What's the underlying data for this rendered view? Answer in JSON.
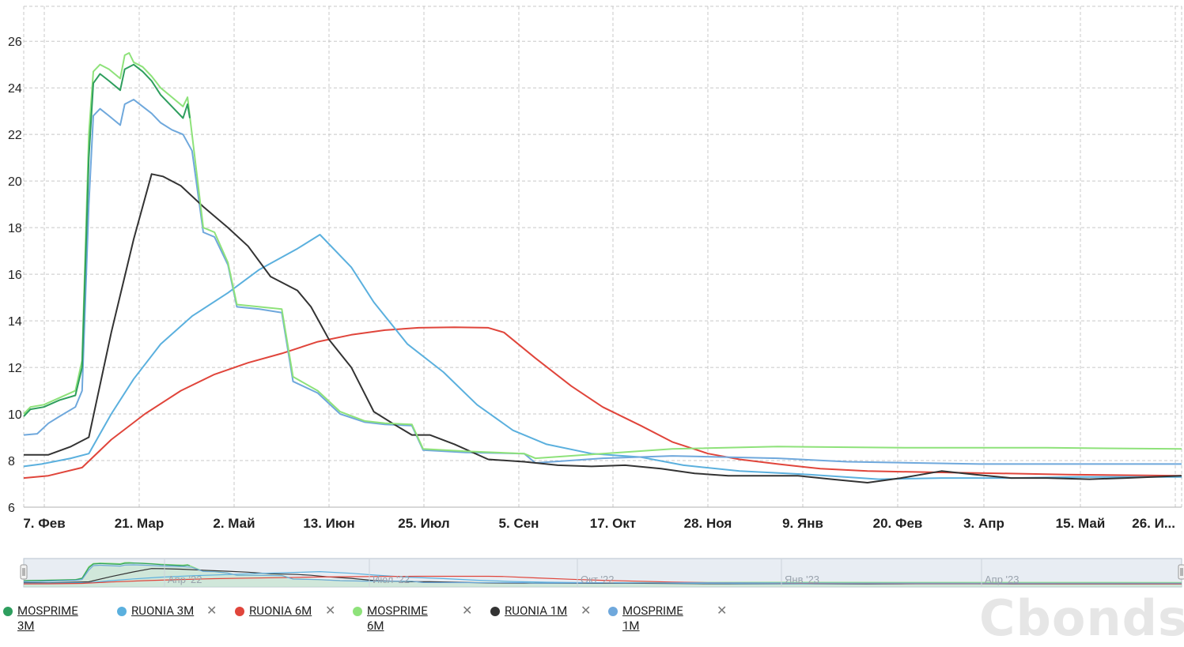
{
  "chart_data": {
    "type": "line",
    "y_ticks": [
      "6",
      "8",
      "10",
      "12",
      "14",
      "16",
      "18",
      "20",
      "22",
      "24",
      "26"
    ],
    "ylim": [
      6,
      27.5
    ],
    "grid": true,
    "x_axis_labels": [
      "7. Фев",
      "21. Мар",
      "2. Май",
      "13. Июн",
      "25. Июл",
      "5. Сен",
      "17. Окт",
      "28. Ноя",
      "9. Янв",
      "20. Фев",
      "3. Апр",
      "15. Май",
      "26. И..."
    ],
    "x_range": [
      "2022-01-30",
      "2023-06-30"
    ],
    "navigator_labels": [
      "Апр '22",
      "Июл '22",
      "Окт '22",
      "Янв '23",
      "Апр '23"
    ],
    "series": [
      {
        "name": "MOSPRIME 3M",
        "color": "#2e9e5e",
        "points": [
          [
            "2022-01-30",
            9.9
          ],
          [
            "2022-02-02",
            10.2
          ],
          [
            "2022-02-08",
            10.3
          ],
          [
            "2022-02-15",
            10.6
          ],
          [
            "2022-02-22",
            10.8
          ],
          [
            "2022-02-25",
            12.0
          ],
          [
            "2022-02-28",
            21.0
          ],
          [
            "2022-03-02",
            24.2
          ],
          [
            "2022-03-05",
            24.6
          ],
          [
            "2022-03-09",
            24.3
          ],
          [
            "2022-03-14",
            23.9
          ],
          [
            "2022-03-16",
            24.8
          ],
          [
            "2022-03-20",
            25.0
          ],
          [
            "2022-03-24",
            24.7
          ],
          [
            "2022-03-28",
            24.3
          ],
          [
            "2022-04-01",
            23.7
          ],
          [
            "2022-04-06",
            23.2
          ],
          [
            "2022-04-11",
            22.7
          ],
          [
            "2022-04-13",
            23.3
          ],
          [
            "2022-04-14",
            22.7
          ]
        ]
      },
      {
        "name": "RUONIA 3M",
        "color": "#5bb0de",
        "points": [
          [
            "2022-01-30",
            7.75
          ],
          [
            "2022-02-07",
            7.85
          ],
          [
            "2022-02-20",
            8.1
          ],
          [
            "2022-02-28",
            8.3
          ],
          [
            "2022-03-10",
            10.0
          ],
          [
            "2022-03-20",
            11.5
          ],
          [
            "2022-04-01",
            13.0
          ],
          [
            "2022-04-15",
            14.2
          ],
          [
            "2022-05-01",
            15.2
          ],
          [
            "2022-05-15",
            16.2
          ],
          [
            "2022-06-01",
            17.1
          ],
          [
            "2022-06-11",
            17.7
          ],
          [
            "2022-06-25",
            16.3
          ],
          [
            "2022-07-05",
            14.8
          ],
          [
            "2022-07-20",
            13.0
          ],
          [
            "2022-08-05",
            11.8
          ],
          [
            "2022-08-20",
            10.4
          ],
          [
            "2022-09-05",
            9.3
          ],
          [
            "2022-09-20",
            8.7
          ],
          [
            "2022-10-10",
            8.3
          ],
          [
            "2022-11-01",
            8.15
          ],
          [
            "2022-11-20",
            7.8
          ],
          [
            "2022-12-15",
            7.55
          ],
          [
            "2023-01-15",
            7.4
          ],
          [
            "2023-02-15",
            7.2
          ],
          [
            "2023-03-15",
            7.25
          ],
          [
            "2023-04-15",
            7.25
          ],
          [
            "2023-05-15",
            7.3
          ],
          [
            "2023-06-30",
            7.3
          ]
        ]
      },
      {
        "name": "RUONIA 6M",
        "color": "#e0453b",
        "points": [
          [
            "2022-01-30",
            7.25
          ],
          [
            "2022-02-10",
            7.35
          ],
          [
            "2022-02-25",
            7.7
          ],
          [
            "2022-03-10",
            8.9
          ],
          [
            "2022-03-25",
            10.0
          ],
          [
            "2022-04-10",
            11.0
          ],
          [
            "2022-04-25",
            11.7
          ],
          [
            "2022-05-10",
            12.2
          ],
          [
            "2022-05-25",
            12.6
          ],
          [
            "2022-06-10",
            13.1
          ],
          [
            "2022-06-25",
            13.4
          ],
          [
            "2022-07-10",
            13.6
          ],
          [
            "2022-07-25",
            13.7
          ],
          [
            "2022-08-10",
            13.72
          ],
          [
            "2022-08-25",
            13.7
          ],
          [
            "2022-09-01",
            13.5
          ],
          [
            "2022-09-15",
            12.4
          ],
          [
            "2022-10-01",
            11.2
          ],
          [
            "2022-10-15",
            10.3
          ],
          [
            "2022-11-01",
            9.5
          ],
          [
            "2022-11-15",
            8.8
          ],
          [
            "2022-12-01",
            8.3
          ],
          [
            "2022-12-15",
            8.05
          ],
          [
            "2023-01-01",
            7.85
          ],
          [
            "2023-01-20",
            7.65
          ],
          [
            "2023-02-10",
            7.55
          ],
          [
            "2023-03-10",
            7.5
          ],
          [
            "2023-04-10",
            7.45
          ],
          [
            "2023-05-10",
            7.4
          ],
          [
            "2023-06-30",
            7.35
          ]
        ]
      },
      {
        "name": "MOSPRIME 6M",
        "color": "#8ee27a",
        "points": [
          [
            "2022-01-30",
            10.0
          ],
          [
            "2022-02-02",
            10.3
          ],
          [
            "2022-02-08",
            10.4
          ],
          [
            "2022-02-15",
            10.7
          ],
          [
            "2022-02-22",
            11.0
          ],
          [
            "2022-02-25",
            12.3
          ],
          [
            "2022-02-28",
            22.0
          ],
          [
            "2022-03-02",
            24.7
          ],
          [
            "2022-03-05",
            25.0
          ],
          [
            "2022-03-09",
            24.8
          ],
          [
            "2022-03-14",
            24.4
          ],
          [
            "2022-03-16",
            25.4
          ],
          [
            "2022-03-18",
            25.5
          ],
          [
            "2022-03-20",
            25.1
          ],
          [
            "2022-03-24",
            24.9
          ],
          [
            "2022-03-28",
            24.5
          ],
          [
            "2022-04-01",
            24.0
          ],
          [
            "2022-04-06",
            23.6
          ],
          [
            "2022-04-11",
            23.2
          ],
          [
            "2022-04-13",
            23.6
          ],
          [
            "2022-04-15",
            22.0
          ],
          [
            "2022-04-20",
            18.0
          ],
          [
            "2022-04-25",
            17.8
          ],
          [
            "2022-05-01",
            16.5
          ],
          [
            "2022-05-05",
            14.7
          ],
          [
            "2022-05-15",
            14.6
          ],
          [
            "2022-05-25",
            14.5
          ],
          [
            "2022-05-30",
            11.6
          ],
          [
            "2022-06-10",
            11.0
          ],
          [
            "2022-06-20",
            10.1
          ],
          [
            "2022-07-01",
            9.7
          ],
          [
            "2022-07-10",
            9.6
          ],
          [
            "2022-07-22",
            9.55
          ],
          [
            "2022-07-27",
            8.5
          ],
          [
            "2022-08-15",
            8.4
          ],
          [
            "2022-09-10",
            8.3
          ],
          [
            "2022-09-15",
            8.1
          ],
          [
            "2022-10-15",
            8.3
          ],
          [
            "2022-11-15",
            8.5
          ],
          [
            "2023-01-01",
            8.6
          ],
          [
            "2023-03-01",
            8.55
          ],
          [
            "2023-05-01",
            8.55
          ],
          [
            "2023-06-30",
            8.5
          ]
        ]
      },
      {
        "name": "RUONIA 1M",
        "color": "#333333",
        "points": [
          [
            "2022-01-30",
            8.25
          ],
          [
            "2022-02-10",
            8.25
          ],
          [
            "2022-02-20",
            8.6
          ],
          [
            "2022-02-28",
            9.0
          ],
          [
            "2022-03-10",
            13.5
          ],
          [
            "2022-03-20",
            17.5
          ],
          [
            "2022-03-28",
            20.3
          ],
          [
            "2022-04-02",
            20.2
          ],
          [
            "2022-04-10",
            19.8
          ],
          [
            "2022-04-20",
            18.9
          ],
          [
            "2022-05-01",
            18.0
          ],
          [
            "2022-05-10",
            17.2
          ],
          [
            "2022-05-20",
            15.9
          ],
          [
            "2022-06-01",
            15.3
          ],
          [
            "2022-06-07",
            14.6
          ],
          [
            "2022-06-15",
            13.2
          ],
          [
            "2022-06-25",
            12.0
          ],
          [
            "2022-07-05",
            10.1
          ],
          [
            "2022-07-15",
            9.5
          ],
          [
            "2022-07-22",
            9.1
          ],
          [
            "2022-07-30",
            9.1
          ],
          [
            "2022-08-10",
            8.7
          ],
          [
            "2022-08-25",
            8.05
          ],
          [
            "2022-09-10",
            7.95
          ],
          [
            "2022-09-25",
            7.8
          ],
          [
            "2022-10-10",
            7.75
          ],
          [
            "2022-10-25",
            7.8
          ],
          [
            "2022-11-10",
            7.65
          ],
          [
            "2022-11-25",
            7.45
          ],
          [
            "2022-12-10",
            7.35
          ],
          [
            "2022-12-25",
            7.35
          ],
          [
            "2023-01-10",
            7.35
          ],
          [
            "2023-01-25",
            7.2
          ],
          [
            "2023-02-10",
            7.05
          ],
          [
            "2023-02-25",
            7.25
          ],
          [
            "2023-03-15",
            7.55
          ],
          [
            "2023-03-30",
            7.4
          ],
          [
            "2023-04-15",
            7.25
          ],
          [
            "2023-05-01",
            7.25
          ],
          [
            "2023-05-20",
            7.2
          ],
          [
            "2023-06-05",
            7.25
          ],
          [
            "2023-06-30",
            7.35
          ]
        ]
      },
      {
        "name": "MOSPRIME 1M",
        "color": "#6fa8dc",
        "points": [
          [
            "2022-01-30",
            9.1
          ],
          [
            "2022-02-05",
            9.15
          ],
          [
            "2022-02-10",
            9.6
          ],
          [
            "2022-02-15",
            9.9
          ],
          [
            "2022-02-22",
            10.3
          ],
          [
            "2022-02-25",
            11.0
          ],
          [
            "2022-02-28",
            19.0
          ],
          [
            "2022-03-02",
            22.8
          ],
          [
            "2022-03-05",
            23.1
          ],
          [
            "2022-03-09",
            22.8
          ],
          [
            "2022-03-14",
            22.4
          ],
          [
            "2022-03-16",
            23.3
          ],
          [
            "2022-03-20",
            23.5
          ],
          [
            "2022-03-24",
            23.2
          ],
          [
            "2022-03-28",
            22.9
          ],
          [
            "2022-04-01",
            22.5
          ],
          [
            "2022-04-06",
            22.2
          ],
          [
            "2022-04-11",
            22.0
          ],
          [
            "2022-04-15",
            21.3
          ],
          [
            "2022-04-20",
            17.8
          ],
          [
            "2022-04-25",
            17.6
          ],
          [
            "2022-05-01",
            16.4
          ],
          [
            "2022-05-05",
            14.6
          ],
          [
            "2022-05-15",
            14.5
          ],
          [
            "2022-05-25",
            14.35
          ],
          [
            "2022-05-30",
            11.4
          ],
          [
            "2022-06-10",
            10.9
          ],
          [
            "2022-06-20",
            10.0
          ],
          [
            "2022-07-01",
            9.65
          ],
          [
            "2022-07-10",
            9.55
          ],
          [
            "2022-07-22",
            9.5
          ],
          [
            "2022-07-27",
            8.45
          ],
          [
            "2022-08-15",
            8.35
          ],
          [
            "2022-09-10",
            8.3
          ],
          [
            "2022-09-15",
            7.9
          ],
          [
            "2022-10-15",
            8.1
          ],
          [
            "2022-11-15",
            8.2
          ],
          [
            "2023-01-01",
            8.1
          ],
          [
            "2023-02-01",
            7.95
          ],
          [
            "2023-04-01",
            7.85
          ],
          [
            "2023-06-30",
            7.85
          ]
        ]
      }
    ]
  },
  "legend": {
    "items": [
      {
        "label": "MOSPRIME 3M",
        "color": "#2e9e5e",
        "removable": false
      },
      {
        "label": "RUONIA 3M",
        "color": "#5bb0de",
        "removable": true
      },
      {
        "label": "RUONIA 6M",
        "color": "#e0453b",
        "removable": true
      },
      {
        "label": "MOSPRIME 6M",
        "color": "#8ee27a",
        "removable": true
      },
      {
        "label": "RUONIA 1M",
        "color": "#333333",
        "removable": true
      },
      {
        "label": "MOSPRIME 1M",
        "color": "#6fa8dc",
        "removable": true
      }
    ],
    "remove_glyph": "✕"
  },
  "watermark": "Cbonds"
}
